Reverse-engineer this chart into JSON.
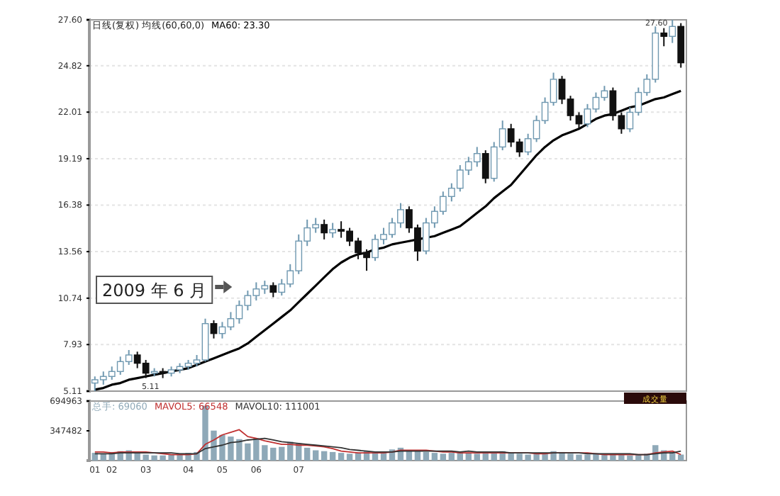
{
  "chart_data": [
    {
      "type": "candlestick",
      "title": "日线(复权) 均线(60,60,0)",
      "legend": "top left",
      "grid": "y",
      "tick_labels": "y",
      "categories": [
        null,
        null,
        null,
        null,
        null,
        null,
        null,
        null,
        null,
        null,
        null,
        null,
        null,
        null,
        null,
        null,
        null,
        null,
        null,
        null,
        null,
        null,
        null,
        null,
        null,
        null,
        null,
        null,
        null,
        null,
        null,
        null,
        null,
        null,
        null,
        null,
        null,
        null,
        null,
        null,
        null,
        null,
        null,
        null,
        null,
        null,
        null,
        null,
        null,
        null,
        null,
        null,
        null,
        null,
        null,
        null,
        null,
        null,
        null,
        null,
        null,
        null,
        null,
        null,
        null,
        null,
        null,
        null,
        null,
        null
      ],
      "ylim": [
        5.11,
        27.6
      ],
      "yticks": [
        5.11,
        7.93,
        10.74,
        13.56,
        16.38,
        19.19,
        22.01,
        24.82,
        {
          "value": 27.6,
          "label": "27.60"
        }
      ],
      "ohlc": [
        [
          5.6,
          6.0,
          5.11,
          5.8
        ],
        [
          5.8,
          6.3,
          5.5,
          6.0
        ],
        [
          6.0,
          6.6,
          5.8,
          6.3
        ],
        [
          6.3,
          7.2,
          6.1,
          6.9
        ],
        [
          6.9,
          7.6,
          6.7,
          7.3
        ],
        [
          7.3,
          7.5,
          6.5,
          6.8
        ],
        [
          6.8,
          7.0,
          5.9,
          6.2
        ],
        [
          6.2,
          6.5,
          6.0,
          6.3
        ],
        [
          6.3,
          6.5,
          5.9,
          6.2
        ],
        [
          6.2,
          6.6,
          6.0,
          6.4
        ],
        [
          6.4,
          6.8,
          6.2,
          6.6
        ],
        [
          6.6,
          7.0,
          6.4,
          6.8
        ],
        [
          6.8,
          7.3,
          6.6,
          7.0
        ],
        [
          7.0,
          9.5,
          6.9,
          9.2
        ],
        [
          9.2,
          9.4,
          8.3,
          8.6
        ],
        [
          8.6,
          9.3,
          8.3,
          9.0
        ],
        [
          9.0,
          9.9,
          8.8,
          9.5
        ],
        [
          9.5,
          10.6,
          9.2,
          10.3
        ],
        [
          10.3,
          11.2,
          10.0,
          10.9
        ],
        [
          10.9,
          11.7,
          10.6,
          11.3
        ],
        [
          11.3,
          11.8,
          11.0,
          11.5
        ],
        [
          11.5,
          11.7,
          10.8,
          11.1
        ],
        [
          11.1,
          11.9,
          10.9,
          11.6
        ],
        [
          11.6,
          12.8,
          11.4,
          12.4
        ],
        [
          12.4,
          14.6,
          12.2,
          14.2
        ],
        [
          14.2,
          15.5,
          13.9,
          15.0
        ],
        [
          15.0,
          15.6,
          14.7,
          15.2
        ],
        [
          15.2,
          15.5,
          14.3,
          14.7
        ],
        [
          14.7,
          15.3,
          14.4,
          14.9
        ],
        [
          14.9,
          15.4,
          14.4,
          14.8
        ],
        [
          14.8,
          15.0,
          13.9,
          14.2
        ],
        [
          14.2,
          14.4,
          13.1,
          13.5
        ],
        [
          13.5,
          13.7,
          12.4,
          13.2
        ],
        [
          13.2,
          14.6,
          13.0,
          14.3
        ],
        [
          14.3,
          15.0,
          14.0,
          14.6
        ],
        [
          14.6,
          15.6,
          14.4,
          15.3
        ],
        [
          15.3,
          16.5,
          15.0,
          16.1
        ],
        [
          16.1,
          16.3,
          14.7,
          15.0
        ],
        [
          15.0,
          15.2,
          13.0,
          13.6
        ],
        [
          13.6,
          15.6,
          13.4,
          15.3
        ],
        [
          15.3,
          16.3,
          15.0,
          16.0
        ],
        [
          16.0,
          17.2,
          15.8,
          16.9
        ],
        [
          16.9,
          17.7,
          16.6,
          17.4
        ],
        [
          17.4,
          18.8,
          17.2,
          18.5
        ],
        [
          18.5,
          19.3,
          18.2,
          19.0
        ],
        [
          19.0,
          19.9,
          18.7,
          19.5
        ],
        [
          19.5,
          19.7,
          17.7,
          18.0
        ],
        [
          18.0,
          20.2,
          17.8,
          19.9
        ],
        [
          19.9,
          21.5,
          19.7,
          21.0
        ],
        [
          21.0,
          21.3,
          19.9,
          20.2
        ],
        [
          20.2,
          20.4,
          19.3,
          19.6
        ],
        [
          19.6,
          20.7,
          19.4,
          20.4
        ],
        [
          20.4,
          21.8,
          20.2,
          21.5
        ],
        [
          21.5,
          22.9,
          21.3,
          22.6
        ],
        [
          22.6,
          24.4,
          22.4,
          24.0
        ],
        [
          24.0,
          24.2,
          22.5,
          22.8
        ],
        [
          22.8,
          23.0,
          21.5,
          21.8
        ],
        [
          21.8,
          22.0,
          21.0,
          21.3
        ],
        [
          21.3,
          22.5,
          21.1,
          22.2
        ],
        [
          22.2,
          23.2,
          22.0,
          22.9
        ],
        [
          22.9,
          23.6,
          22.7,
          23.3
        ],
        [
          23.3,
          23.5,
          21.5,
          21.8
        ],
        [
          21.8,
          22.0,
          20.7,
          21.0
        ],
        [
          21.0,
          22.3,
          20.8,
          22.0
        ],
        [
          22.0,
          23.5,
          21.8,
          23.2
        ],
        [
          23.2,
          24.3,
          23.0,
          24.0
        ],
        [
          24.0,
          27.2,
          23.8,
          26.8
        ],
        [
          26.8,
          27.1,
          26.0,
          26.6
        ],
        [
          26.6,
          27.6,
          26.2,
          27.2
        ],
        [
          27.2,
          27.4,
          24.7,
          25.0
        ]
      ],
      "series": [
        {
          "type": "line",
          "name": "MA60: 23.30",
          "color": "#000000",
          "values": [
            5.2,
            5.3,
            5.5,
            5.6,
            5.8,
            5.9,
            6.0,
            6.1,
            6.2,
            6.3,
            6.4,
            6.5,
            6.7,
            6.9,
            7.1,
            7.3,
            7.5,
            7.7,
            8.0,
            8.4,
            8.8,
            9.2,
            9.6,
            10.0,
            10.5,
            11.0,
            11.5,
            12.0,
            12.5,
            12.9,
            13.2,
            13.4,
            13.5,
            13.7,
            13.8,
            14.0,
            14.1,
            14.2,
            14.3,
            14.4,
            14.5,
            14.7,
            14.9,
            15.1,
            15.5,
            15.9,
            16.3,
            16.8,
            17.2,
            17.6,
            18.2,
            18.8,
            19.4,
            19.9,
            20.3,
            20.6,
            20.8,
            21.0,
            21.3,
            21.6,
            21.8,
            21.9,
            22.1,
            22.3,
            22.4,
            22.6,
            22.8,
            22.9,
            23.1,
            23.3
          ]
        }
      ],
      "annotations": [
        "2009 年 6 月",
        "27.60",
        "5.11"
      ]
    },
    {
      "type": "bar",
      "legend": "top left",
      "categories": [
        "01",
        null,
        "02",
        null,
        null,
        null,
        "03",
        null,
        null,
        null,
        null,
        "04",
        null,
        null,
        null,
        "05",
        null,
        null,
        null,
        "06",
        null,
        null,
        null,
        null,
        "07",
        null,
        null,
        null,
        null,
        null,
        null,
        null,
        null,
        null,
        null,
        null,
        null,
        null,
        null,
        null,
        null,
        null,
        null,
        null,
        null,
        null,
        null,
        null,
        null,
        null,
        null,
        null,
        null,
        null,
        null,
        null,
        null,
        null,
        null,
        null,
        null,
        null,
        null,
        null,
        null,
        null,
        null,
        null,
        null,
        null
      ],
      "ylim": [
        0,
        694963
      ],
      "yticks": [
        347482,
        694963
      ],
      "series": [
        {
          "type": "bar",
          "name": "总手: 69060",
          "color": "#8fa9b8",
          "values": [
            90000,
            80000,
            100000,
            110000,
            120000,
            90000,
            70000,
            60000,
            60000,
            70000,
            80000,
            90000,
            100000,
            640000,
            350000,
            300000,
            280000,
            250000,
            200000,
            260000,
            180000,
            150000,
            160000,
            220000,
            200000,
            150000,
            120000,
            110000,
            100000,
            90000,
            80000,
            90000,
            110000,
            100000,
            90000,
            130000,
            150000,
            110000,
            120000,
            100000,
            90000,
            80000,
            90000,
            100000,
            90000,
            80000,
            100000,
            90000,
            110000,
            90000,
            80000,
            70000,
            80000,
            90000,
            110000,
            100000,
            80000,
            70000,
            70000,
            80000,
            70000,
            80000,
            70000,
            60000,
            70000,
            80000,
            180000,
            120000,
            100000,
            70000
          ]
        },
        {
          "type": "line",
          "name": "MAVOL5: 66548",
          "color": "#c03030",
          "values": [
            100000,
            100000,
            90000,
            100000,
            100000,
            100000,
            100000,
            90000,
            80000,
            70000,
            70000,
            70000,
            80000,
            190000,
            240000,
            300000,
            330000,
            360000,
            280000,
            260000,
            230000,
            210000,
            190000,
            190000,
            180000,
            180000,
            170000,
            160000,
            140000,
            110000,
            100000,
            90000,
            90000,
            90000,
            90000,
            100000,
            120000,
            120000,
            120000,
            120000,
            110000,
            100000,
            100000,
            90000,
            90000,
            90000,
            90000,
            90000,
            90000,
            90000,
            90000,
            90000,
            80000,
            80000,
            90000,
            90000,
            90000,
            90000,
            90000,
            80000,
            70000,
            70000,
            70000,
            70000,
            70000,
            70000,
            90000,
            100000,
            110000,
            70000
          ]
        },
        {
          "type": "line",
          "name": "MAVOL10: 111001",
          "color": "#333333",
          "values": [
            80000,
            80000,
            80000,
            90000,
            90000,
            90000,
            90000,
            90000,
            90000,
            90000,
            80000,
            80000,
            80000,
            140000,
            160000,
            180000,
            210000,
            220000,
            240000,
            250000,
            260000,
            240000,
            220000,
            210000,
            200000,
            190000,
            180000,
            170000,
            160000,
            150000,
            130000,
            120000,
            110000,
            100000,
            100000,
            100000,
            110000,
            110000,
            110000,
            110000,
            110000,
            110000,
            110000,
            100000,
            110000,
            100000,
            100000,
            100000,
            100000,
            90000,
            90000,
            90000,
            90000,
            90000,
            90000,
            90000,
            90000,
            90000,
            80000,
            80000,
            80000,
            80000,
            80000,
            80000,
            70000,
            70000,
            80000,
            90000,
            90000,
            110000
          ]
        }
      ],
      "annotations": [
        "成交量"
      ]
    }
  ]
}
